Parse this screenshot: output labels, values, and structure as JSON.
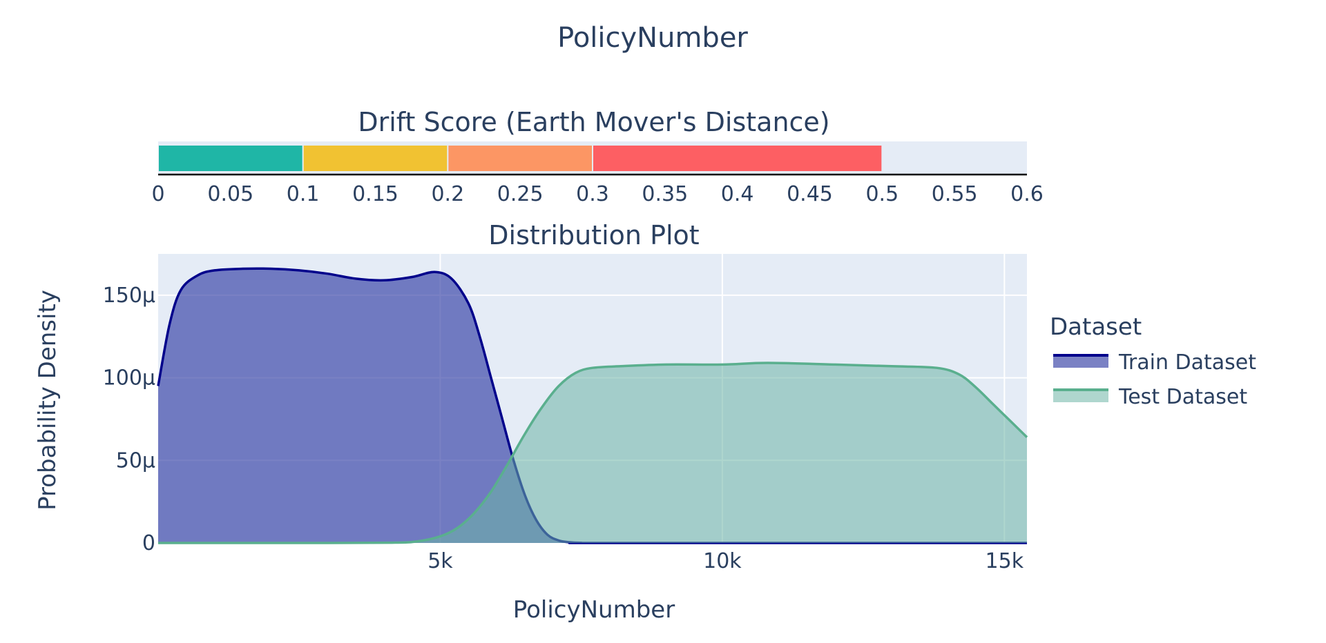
{
  "figure_title": "PolicyNumber",
  "chart_data": [
    {
      "type": "bar",
      "title": "Drift Score (Earth Mover's Distance)",
      "orientation": "horizontal",
      "xlim": [
        0,
        0.6
      ],
      "ticks": [
        0,
        0.05,
        0.1,
        0.15,
        0.2,
        0.25,
        0.3,
        0.35,
        0.4,
        0.45,
        0.5,
        0.55,
        0.6
      ],
      "tick_labels": [
        "0",
        "0.05",
        "0.1",
        "0.15",
        "0.2",
        "0.25",
        "0.3",
        "0.35",
        "0.4",
        "0.45",
        "0.5",
        "0.55",
        "0.6"
      ],
      "segments": [
        {
          "start": 0,
          "end": 0.1,
          "color": "#1fb6a6"
        },
        {
          "start": 0.1,
          "end": 0.2,
          "color": "#f1c232"
        },
        {
          "start": 0.2,
          "end": 0.3,
          "color": "#fc9664"
        },
        {
          "start": 0.3,
          "end": 0.5,
          "color": "#fd5f63"
        }
      ],
      "background_color": "#e5ecf6"
    },
    {
      "type": "area",
      "title": "Distribution Plot",
      "xlabel": "PolicyNumber",
      "ylabel": "Probability Density",
      "xlim": [
        0,
        15400
      ],
      "ylim": [
        0,
        0.000175
      ],
      "x_ticks": [
        5000,
        10000,
        15000
      ],
      "x_tick_labels": [
        "5k",
        "10k",
        "15k"
      ],
      "y_ticks": [
        0,
        5e-05,
        0.0001,
        0.00015
      ],
      "y_tick_labels": [
        "0",
        "50μ",
        "100μ",
        "150μ"
      ],
      "grid": true,
      "legend_title": "Dataset",
      "legend_position": "right",
      "series": [
        {
          "name": "Train Dataset",
          "color": "#00008b",
          "fill": "rgba(40,52,160,0.62)",
          "x": [
            0,
            200,
            400,
            700,
            1000,
            1500,
            2000,
            2500,
            3000,
            3500,
            4000,
            4500,
            4900,
            5200,
            5500,
            5700,
            5900,
            6100,
            6300,
            6500,
            6700,
            6900,
            7100,
            7300,
            7500,
            8000,
            15400
          ],
          "y": [
            9.5e-05,
            0.000132,
            0.000153,
            0.000162,
            0.000165,
            0.000166,
            0.000166,
            0.000165,
            0.000163,
            0.00016,
            0.000159,
            0.000161,
            0.000164,
            0.00016,
            0.000145,
            0.000125,
            0.0001,
            7.5e-05,
            5e-05,
            2.9e-05,
            1.4e-05,
            5e-06,
            1.5e-06,
            4e-07,
            1e-07,
            0,
            0
          ]
        },
        {
          "name": "Test Dataset",
          "color": "#5aaf8e",
          "fill": "rgba(110,180,165,0.55)",
          "x": [
            0,
            3000,
            4200,
            4600,
            5000,
            5300,
            5600,
            5900,
            6200,
            6500,
            6800,
            7100,
            7400,
            7700,
            8200,
            9000,
            10000,
            10800,
            12000,
            13000,
            13800,
            14200,
            14500,
            14800,
            15100,
            15400
          ],
          "y": [
            0,
            0,
            2e-07,
            1e-06,
            4e-06,
            9e-06,
            1.8e-05,
            3.1e-05,
            4.8e-05,
            6.6e-05,
            8.2e-05,
            9.5e-05,
            0.000103,
            0.000106,
            0.000107,
            0.000108,
            0.000108,
            0.000109,
            0.000108,
            0.000107,
            0.000106,
            0.000102,
            9.4e-05,
            8.4e-05,
            7.4e-05,
            6.4e-05
          ]
        }
      ]
    }
  ]
}
